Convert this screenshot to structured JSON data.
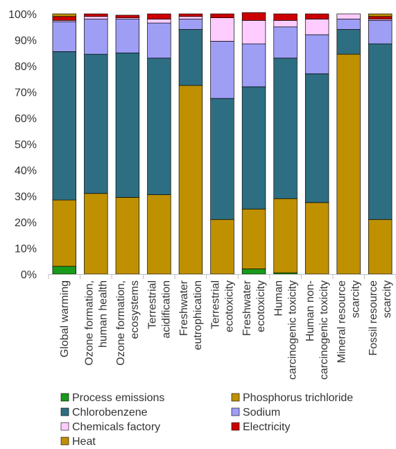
{
  "chart_data": {
    "type": "bar",
    "stacked": true,
    "percent": true,
    "categories": [
      "Global warming",
      "Ozone formation, human health",
      "Ozone formation, ecosystems",
      "Terrestrial acidification",
      "Freshwater eutrophication",
      "Terrestrial ecotoxicity",
      "Freshwater ecotoxicity",
      "Human carcinogenic toxicity",
      "Human non-carcinogenic toxicity",
      "Mineral resource scarcity",
      "Fossil resource scarcity"
    ],
    "category_lines": [
      [
        "Global warming"
      ],
      [
        "Ozone formation,",
        "human health"
      ],
      [
        "Ozone formation,",
        "ecosystems"
      ],
      [
        "Terrestrial",
        "acidification"
      ],
      [
        "Freshwater",
        "eutrophication"
      ],
      [
        "Terrestrial",
        "ecotoxicity"
      ],
      [
        "Freshwater",
        "ecotoxicity"
      ],
      [
        "Human",
        "carcinogenic toxicity"
      ],
      [
        "Human non-",
        "carcinogenic toxicity"
      ],
      [
        "Mineral resource",
        "scarcity"
      ],
      [
        "Fossil resource",
        "scarcity"
      ]
    ],
    "series": [
      {
        "name": "Process emissions",
        "color": "#1a9a1a",
        "values": [
          3.0,
          0,
          0,
          0,
          0,
          0,
          2.0,
          0.5,
          0,
          0,
          0
        ]
      },
      {
        "name": "Phosphorus trichloride",
        "color": "#bf9000",
        "values": [
          25.5,
          31.0,
          29.5,
          30.5,
          72.5,
          21.0,
          23.0,
          28.5,
          27.5,
          84.5,
          21.0
        ]
      },
      {
        "name": "Chlorobenzene",
        "color": "#2e6e82",
        "values": [
          57.0,
          53.5,
          55.5,
          52.5,
          21.5,
          46.5,
          47.0,
          54.0,
          49.5,
          9.5,
          67.5
        ]
      },
      {
        "name": "Sodium",
        "color": "#9e9ef5",
        "values": [
          11.5,
          13.5,
          13.0,
          13.5,
          4.0,
          22.0,
          16.5,
          12.0,
          15.0,
          4.0,
          9.0
        ]
      },
      {
        "name": "Chemicals factory",
        "color": "#ffccff",
        "values": [
          0.5,
          1.0,
          0.5,
          1.5,
          1.0,
          9.0,
          9.0,
          2.5,
          6.0,
          2.0,
          0.5
        ]
      },
      {
        "name": "Electricity",
        "color": "#cc0000",
        "values": [
          1.5,
          1.0,
          1.0,
          2.0,
          1.0,
          1.5,
          3.0,
          2.5,
          2.0,
          0,
          1.0
        ]
      },
      {
        "name": "Heat",
        "color": "#bf9000",
        "values": [
          1.0,
          0,
          0,
          0,
          0,
          0,
          0,
          0,
          0,
          0,
          1.0
        ]
      }
    ],
    "yticks": [
      "0%",
      "10%",
      "20%",
      "30%",
      "40%",
      "50%",
      "60%",
      "70%",
      "80%",
      "90%",
      "100%"
    ],
    "ylim": [
      0,
      100
    ],
    "title": "",
    "xlabel": "",
    "ylabel": "",
    "grid": false,
    "legend_position": "bottom"
  }
}
